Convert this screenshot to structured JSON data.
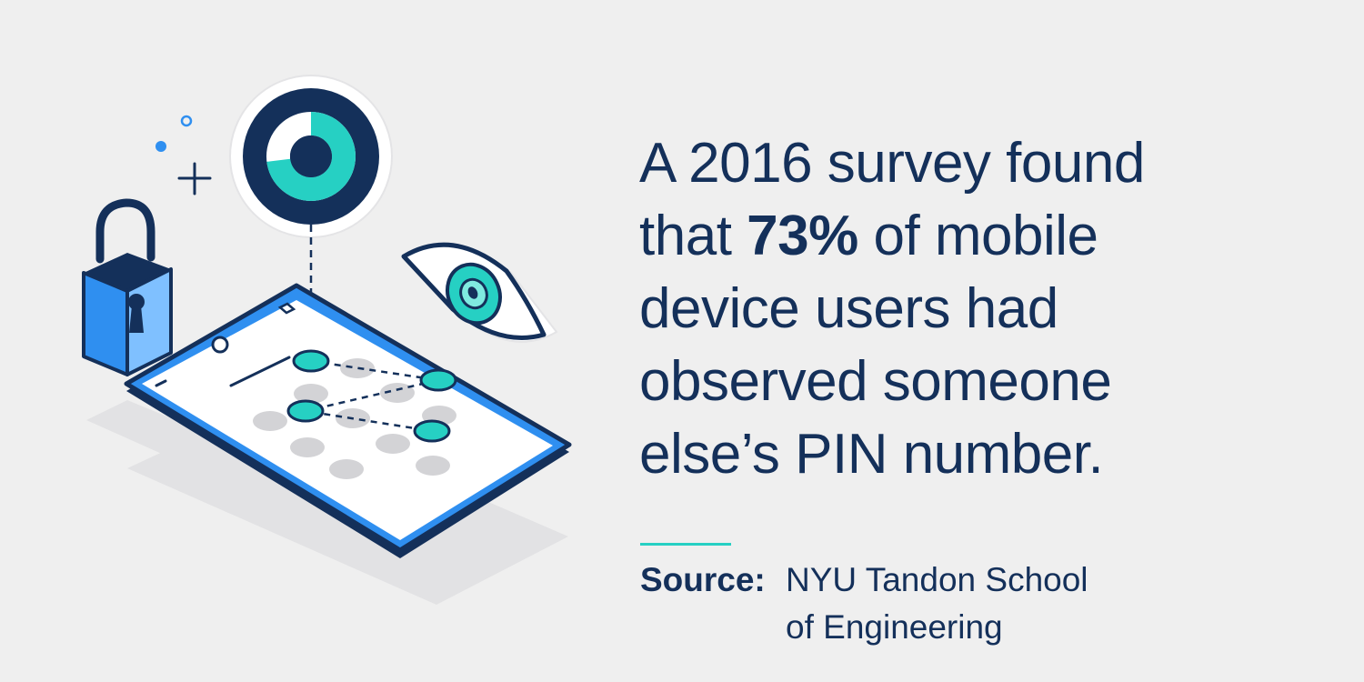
{
  "headline": {
    "line1": "A 2016 survey found",
    "line2_before": "that ",
    "line2_highlight": "73%",
    "line2_after": " of mobile",
    "line3": "device users had",
    "line4": "observed someone",
    "line5": "else’s PIN number."
  },
  "source": {
    "label": "Source:",
    "line1": "NYU Tandon School",
    "line2": "of Engineering"
  },
  "colors": {
    "background": "#efefef",
    "navy": "#14305a",
    "teal": "#26d0c3",
    "blue": "#2f8ff0",
    "light_blue": "#6fb8ff",
    "gray_dot": "#d3d3d6",
    "shadow": "#e0e0e2"
  },
  "icons": [
    "padlock-icon",
    "donut-chart-icon",
    "eye-icon",
    "plus-icon",
    "phone-icon"
  ]
}
